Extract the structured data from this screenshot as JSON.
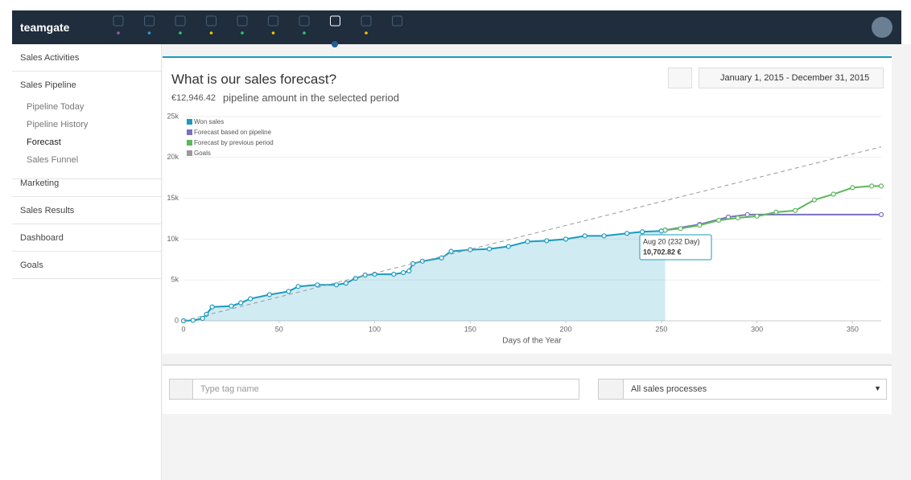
{
  "header": {
    "logo": "teamgate"
  },
  "sidebar": {
    "items": [
      "Sales Activities",
      "Sales Pipeline",
      "Marketing",
      "Sales Results",
      "Dashboard",
      "Goals"
    ],
    "subitems": [
      "Pipeline Today",
      "Pipeline History",
      "Forecast",
      "Sales Funnel"
    ]
  },
  "panel": {
    "title": "What is our sales forecast?",
    "amount": "€12,946.42",
    "amount_note": "pipeline amount in the selected period",
    "date_range": "January 1, 2015 - December 31, 2015"
  },
  "chart_data": {
    "type": "line",
    "xlabel": "Days of the Year",
    "xlim": [
      0,
      365
    ],
    "ylim": [
      0,
      25000
    ],
    "xticks": [
      0,
      50,
      100,
      150,
      200,
      250,
      300,
      350
    ],
    "yticks": [
      0,
      {
        "value": 5000,
        "label": "5k"
      },
      {
        "value": 10000,
        "label": "10k"
      },
      {
        "value": 15000,
        "label": "15k"
      },
      {
        "value": 20000,
        "label": "20k"
      },
      {
        "value": 25000,
        "label": "25k"
      }
    ],
    "grid": true,
    "series": [
      {
        "name": "Won sales",
        "color": "#1a9bc0",
        "area": true,
        "x": [
          0,
          5,
          10,
          12,
          15,
          25,
          30,
          35,
          45,
          55,
          60,
          70,
          80,
          85,
          90,
          95,
          100,
          110,
          115,
          118,
          120,
          125,
          135,
          140,
          150,
          160,
          170,
          180,
          190,
          200,
          210,
          220,
          232,
          240,
          250,
          252
        ],
        "values": [
          0,
          50,
          300,
          800,
          1700,
          1800,
          2200,
          2700,
          3200,
          3600,
          4200,
          4400,
          4400,
          4600,
          5200,
          5600,
          5700,
          5700,
          5900,
          6100,
          7000,
          7300,
          7700,
          8500,
          8700,
          8800,
          9100,
          9700,
          9800,
          10000,
          10400,
          10400,
          10700,
          10900,
          11000,
          11100
        ]
      },
      {
        "name": "Forecast based on pipeline",
        "color": "#7b6fc4",
        "x": [
          252,
          270,
          285,
          295,
          365
        ],
        "values": [
          11100,
          11800,
          12700,
          13000,
          13000
        ]
      },
      {
        "name": "Forecast by previous period",
        "color": "#5cb85c",
        "x": [
          252,
          260,
          270,
          280,
          290,
          300,
          310,
          320,
          330,
          340,
          350,
          360,
          365
        ],
        "values": [
          11100,
          11300,
          11700,
          12300,
          12600,
          12800,
          13300,
          13500,
          14800,
          15500,
          16300,
          16500,
          16500
        ]
      },
      {
        "name": "Goals",
        "color": "#999999",
        "dashed": true,
        "x": [
          0,
          365
        ],
        "values": [
          0,
          21300
        ]
      }
    ],
    "tooltip": {
      "title": "Aug 20 (232 Day)",
      "value": "10,702.82 €"
    }
  },
  "filters": {
    "tag_placeholder": "Type tag name",
    "process": "All sales processes"
  }
}
